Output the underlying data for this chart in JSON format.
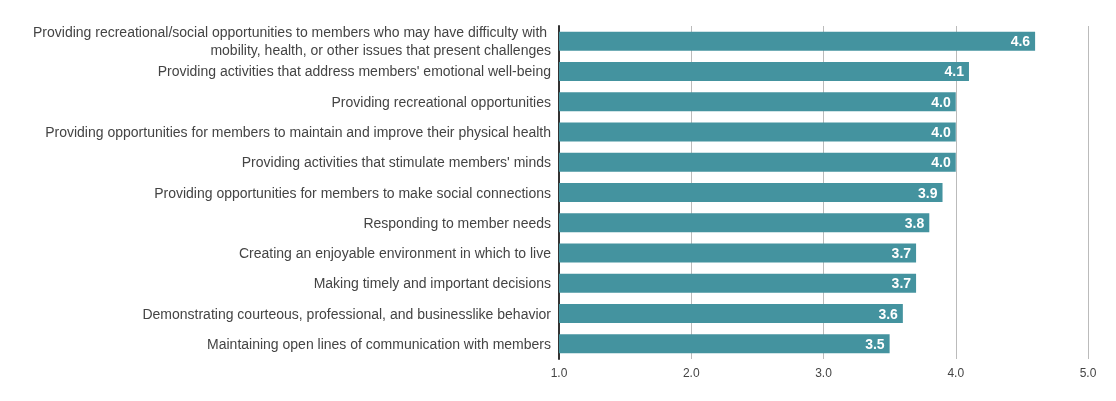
{
  "chart_data": {
    "type": "bar",
    "orientation": "horizontal",
    "categories": [
      "Providing recreational/social opportunities to members who may have difficulty with mobility, health, or other issues that present challenges",
      "Providing activities that address members' emotional well-being",
      "Providing recreational opportunities",
      "Providing opportunities for members to maintain and improve their physical health",
      "Providing activities that stimulate members' minds",
      "Providing opportunities for members to make social connections",
      "Responding to member needs",
      "Creating an enjoyable environment in which to live",
      "Making timely and important decisions",
      "Demonstrating courteous, professional, and businesslike behavior",
      "Maintaining open lines of communication with members"
    ],
    "values": [
      4.6,
      4.1,
      4.0,
      4.0,
      4.0,
      3.9,
      3.8,
      3.7,
      3.7,
      3.6,
      3.5
    ],
    "value_labels": [
      "4.6",
      "4.1",
      "4.0",
      "4.0",
      "4.0",
      "3.9",
      "3.8",
      "3.7",
      "3.7",
      "3.6",
      "3.5"
    ],
    "color": "#44939f",
    "xlim": [
      1,
      5
    ],
    "xticks": [
      {
        "value": 1,
        "label": "1.0"
      },
      {
        "value": 2,
        "label": "2.0"
      },
      {
        "value": 3,
        "label": "3.0"
      },
      {
        "value": 4,
        "label": "4.0"
      },
      {
        "value": 5,
        "label": "5.0"
      }
    ],
    "grid": "x"
  }
}
